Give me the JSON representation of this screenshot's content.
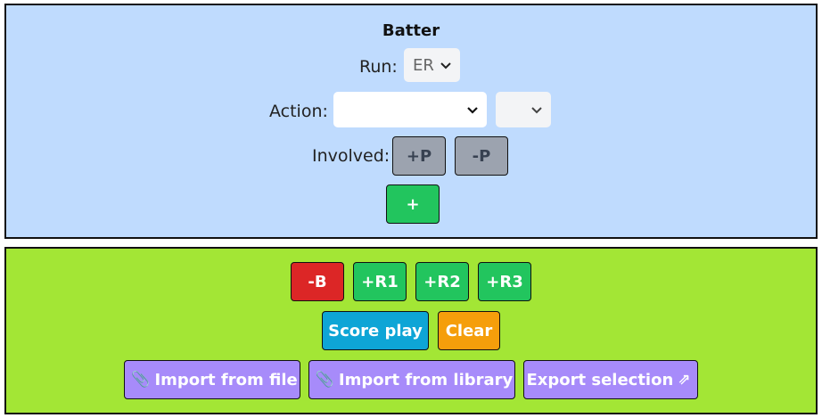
{
  "batter": {
    "title": "Batter",
    "run_label": "Run:",
    "run_value": "ER",
    "action_label": "Action:",
    "action_value": "",
    "action_sub_value": "",
    "involved_label": "Involved:",
    "add_player": "+P",
    "remove_player": "-P",
    "add": "+"
  },
  "actions": {
    "remove_batter": "-B",
    "add_r1": "+R1",
    "add_r2": "+R2",
    "add_r3": "+R3",
    "score_play": "Score play",
    "clear": "Clear",
    "import_file": "Import from file",
    "import_library": "Import from library",
    "export_selection": "Export selection"
  },
  "icons": {
    "import": "paperclip-icon",
    "export": "arrow-up-right-icon",
    "dropdown": "chevron-down-icon"
  },
  "colors": {
    "batter_panel_bg": "#bfdbfe",
    "actions_panel_bg": "#a3e635",
    "green": "#22c55e",
    "red": "#dc2626",
    "blue": "#0ea5d6",
    "orange": "#f59e0b",
    "purple": "#a78bfa",
    "gray": "#9ca3af"
  }
}
